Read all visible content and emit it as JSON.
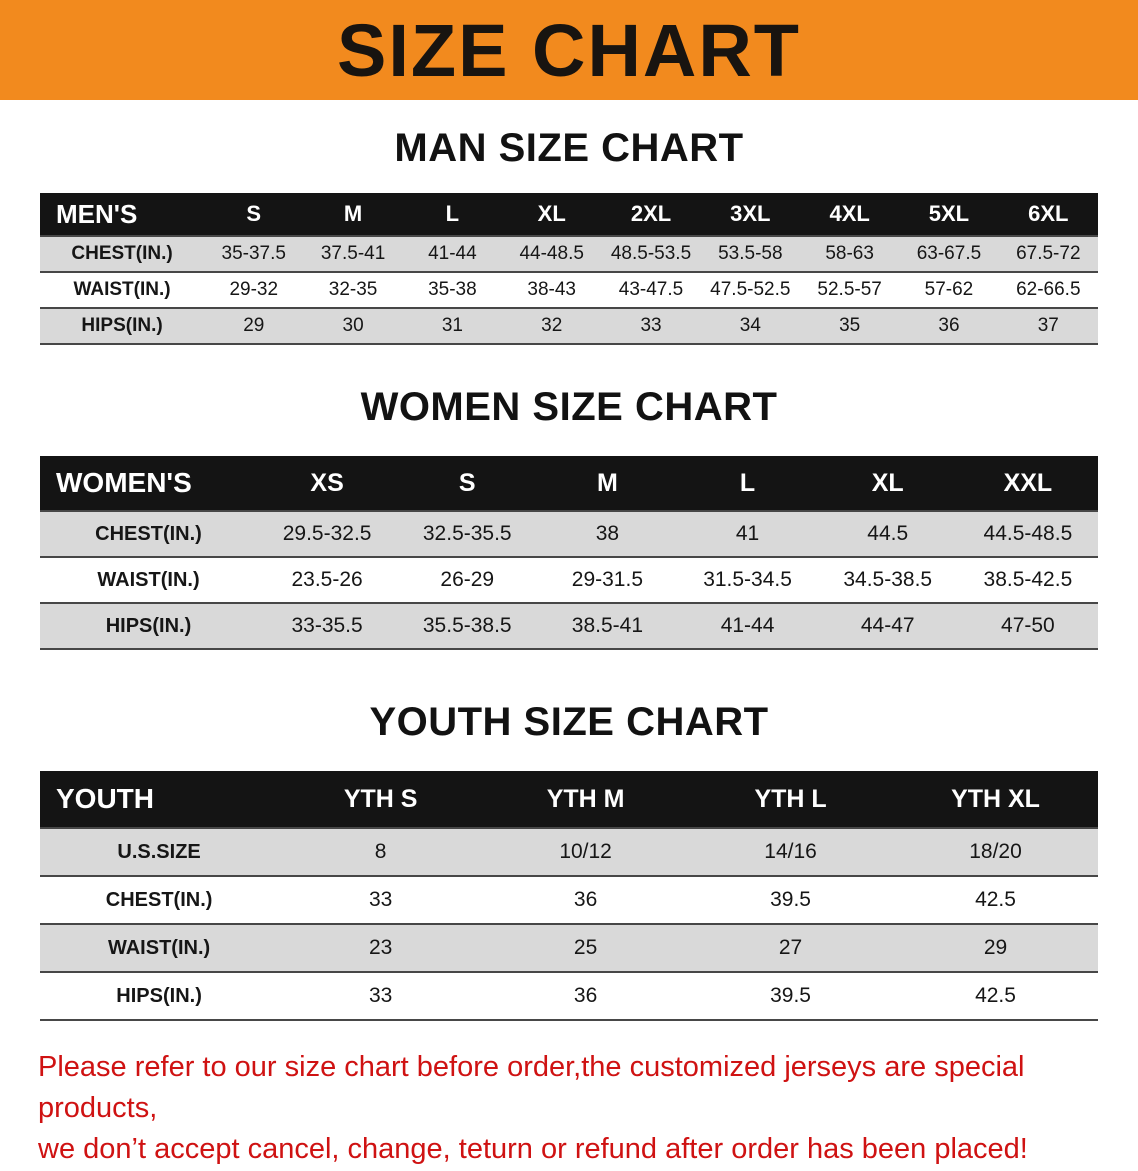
{
  "banner": {
    "title": "SIZE CHART",
    "bg_color": "#f28a1e",
    "text_color": "#181410"
  },
  "men": {
    "heading": "MAN SIZE CHART",
    "table": {
      "header": [
        "MEN'S",
        "S",
        "M",
        "L",
        "XL",
        "2XL",
        "3XL",
        "4XL",
        "5XL",
        "6XL"
      ],
      "rows": [
        [
          "CHEST(IN.)",
          "35-37.5",
          "37.5-41",
          "41-44",
          "44-48.5",
          "48.5-53.5",
          "53.5-58",
          "58-63",
          "63-67.5",
          "67.5-72"
        ],
        [
          "WAIST(IN.)",
          "29-32",
          "32-35",
          "35-38",
          "38-43",
          "43-47.5",
          "47.5-52.5",
          "52.5-57",
          "57-62",
          "62-66.5"
        ],
        [
          "HIPS(IN.)",
          "29",
          "30",
          "31",
          "32",
          "33",
          "34",
          "35",
          "36",
          "37"
        ]
      ]
    }
  },
  "women": {
    "heading": "WOMEN SIZE CHART",
    "table": {
      "header": [
        "WOMEN'S",
        "XS",
        "S",
        "M",
        "L",
        "XL",
        "XXL"
      ],
      "rows": [
        [
          "CHEST(IN.)",
          "29.5-32.5",
          "32.5-35.5",
          "38",
          "41",
          "44.5",
          "44.5-48.5"
        ],
        [
          "WAIST(IN.)",
          "23.5-26",
          "26-29",
          "29-31.5",
          "31.5-34.5",
          "34.5-38.5",
          "38.5-42.5"
        ],
        [
          "HIPS(IN.)",
          "33-35.5",
          "35.5-38.5",
          "38.5-41",
          "41-44",
          "44-47",
          "47-50"
        ]
      ]
    }
  },
  "youth": {
    "heading": "YOUTH SIZE CHART",
    "table": {
      "header": [
        "YOUTH",
        "YTH S",
        "YTH M",
        "YTH L",
        "YTH XL"
      ],
      "rows": [
        [
          "U.S.SIZE",
          "8",
          "10/12",
          "14/16",
          "18/20"
        ],
        [
          "CHEST(IN.)",
          "33",
          "36",
          "39.5",
          "42.5"
        ],
        [
          "WAIST(IN.)",
          "23",
          "25",
          "27",
          "29"
        ],
        [
          "HIPS(IN.)",
          "33",
          "36",
          "39.5",
          "42.5"
        ]
      ]
    }
  },
  "footnote": {
    "line1": "Please refer to our size chart before order,the customized jerseys are special products,",
    "line2": "we don’t accept cancel, change, teturn or refund after order has been placed!",
    "color": "#cf1212"
  },
  "table_colors": {
    "header_bg": "#141414",
    "header_text": "#ffffff",
    "stripe_gray": "#d9d9d9",
    "stripe_white": "#ffffff",
    "row_divider": "#474747"
  }
}
